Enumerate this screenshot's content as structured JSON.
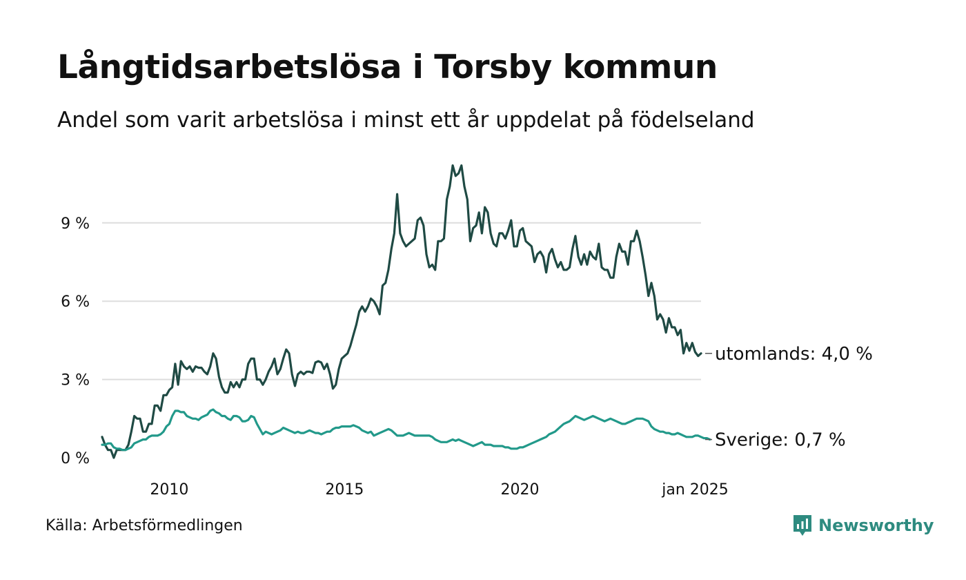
{
  "title": "Långtidsarbetslösa i Torsby kommun",
  "subtitle": "Andel som varit arbetslösa i minst ett år uppdelat på födelseland",
  "source": "Källa: Arbetsförmedlingen",
  "brand": "Newsworthy",
  "colors": {
    "utomlands": "#1f4a44",
    "sverige": "#22998a",
    "grid": "#dddddd",
    "brand": "#2e8b80"
  },
  "chart_data": {
    "type": "line",
    "title": "Långtidsarbetslösa i Torsby kommun",
    "xlabel": "",
    "ylabel": "",
    "x_start": "2008-02",
    "ylim": [
      0,
      11.5
    ],
    "y_ticks": [
      0,
      3,
      6,
      9
    ],
    "y_tick_labels": [
      "0 %",
      "3 %",
      "6 %",
      "9 %"
    ],
    "x_ticks": [
      2010,
      2015,
      2020,
      2025
    ],
    "x_tick_labels": [
      "2010",
      "2015",
      "2020",
      "jan 2025"
    ],
    "series": [
      {
        "name": "utomlands",
        "end_label": "utomlands: 4,0 %",
        "values": [
          0.8,
          0.5,
          0.3,
          0.3,
          0.0,
          0.3,
          0.3,
          0.3,
          0.3,
          0.5,
          1.0,
          1.6,
          1.5,
          1.5,
          1.0,
          1.0,
          1.3,
          1.3,
          2.0,
          2.0,
          1.8,
          2.4,
          2.4,
          2.6,
          2.7,
          3.6,
          2.8,
          3.7,
          3.5,
          3.4,
          3.5,
          3.3,
          3.5,
          3.45,
          3.45,
          3.3,
          3.2,
          3.5,
          4.0,
          3.8,
          3.1,
          2.7,
          2.5,
          2.5,
          2.9,
          2.7,
          2.9,
          2.7,
          3.0,
          3.0,
          3.6,
          3.8,
          3.8,
          3.0,
          3.0,
          2.8,
          3.0,
          3.3,
          3.5,
          3.8,
          3.2,
          3.4,
          3.8,
          4.15,
          4.0,
          3.2,
          2.75,
          3.2,
          3.3,
          3.2,
          3.3,
          3.3,
          3.25,
          3.65,
          3.7,
          3.65,
          3.4,
          3.6,
          3.2,
          2.65,
          2.8,
          3.4,
          3.8,
          3.9,
          4.0,
          4.3,
          4.7,
          5.1,
          5.6,
          5.8,
          5.6,
          5.8,
          6.1,
          6.0,
          5.8,
          5.5,
          6.6,
          6.7,
          7.2,
          8.0,
          8.6,
          10.1,
          8.6,
          8.3,
          8.1,
          8.2,
          8.3,
          8.4,
          9.1,
          9.2,
          8.9,
          7.8,
          7.3,
          7.4,
          7.2,
          8.3,
          8.3,
          8.4,
          9.9,
          10.4,
          11.2,
          10.8,
          10.9,
          11.2,
          10.4,
          9.9,
          8.3,
          8.8,
          8.9,
          9.4,
          8.6,
          9.6,
          9.4,
          8.6,
          8.2,
          8.1,
          8.6,
          8.6,
          8.4,
          8.7,
          9.1,
          8.1,
          8.1,
          8.7,
          8.8,
          8.3,
          8.2,
          8.1,
          7.5,
          7.8,
          7.9,
          7.7,
          7.1,
          7.8,
          8.0,
          7.6,
          7.3,
          7.5,
          7.2,
          7.2,
          7.3,
          8.0,
          8.5,
          7.7,
          7.4,
          7.8,
          7.4,
          7.9,
          7.7,
          7.6,
          8.2,
          7.3,
          7.2,
          7.2,
          6.9,
          6.9,
          7.7,
          8.2,
          7.9,
          7.9,
          7.4,
          8.3,
          8.3,
          8.7,
          8.3,
          7.7,
          7.0,
          6.2,
          6.7,
          6.2,
          5.3,
          5.5,
          5.3,
          4.8,
          5.35,
          5.0,
          5.0,
          4.7,
          4.9,
          4.0,
          4.4,
          4.1,
          4.4,
          4.05,
          3.9,
          4.0
        ]
      },
      {
        "name": "Sverige",
        "end_label": "Sverige: 0,7 %",
        "values": [
          0.5,
          0.5,
          0.55,
          0.55,
          0.4,
          0.35,
          0.35,
          0.3,
          0.3,
          0.35,
          0.4,
          0.55,
          0.6,
          0.65,
          0.7,
          0.7,
          0.8,
          0.85,
          0.85,
          0.85,
          0.9,
          1.0,
          1.2,
          1.3,
          1.6,
          1.8,
          1.8,
          1.75,
          1.75,
          1.6,
          1.55,
          1.5,
          1.5,
          1.45,
          1.55,
          1.6,
          1.65,
          1.8,
          1.85,
          1.75,
          1.7,
          1.6,
          1.6,
          1.5,
          1.45,
          1.6,
          1.6,
          1.55,
          1.4,
          1.4,
          1.45,
          1.6,
          1.55,
          1.3,
          1.1,
          0.9,
          1.0,
          0.95,
          0.9,
          0.95,
          1.0,
          1.05,
          1.15,
          1.1,
          1.05,
          1.0,
          0.95,
          1.0,
          0.95,
          0.95,
          1.0,
          1.05,
          1.0,
          0.95,
          0.95,
          0.9,
          0.95,
          1.0,
          1.0,
          1.1,
          1.15,
          1.15,
          1.2,
          1.2,
          1.2,
          1.2,
          1.25,
          1.2,
          1.15,
          1.05,
          1.0,
          0.95,
          1.0,
          0.85,
          0.9,
          0.95,
          1.0,
          1.05,
          1.1,
          1.05,
          0.95,
          0.85,
          0.85,
          0.85,
          0.9,
          0.95,
          0.9,
          0.85,
          0.85,
          0.85,
          0.85,
          0.85,
          0.85,
          0.8,
          0.7,
          0.65,
          0.6,
          0.6,
          0.6,
          0.65,
          0.7,
          0.65,
          0.7,
          0.65,
          0.6,
          0.55,
          0.5,
          0.45,
          0.5,
          0.55,
          0.6,
          0.5,
          0.5,
          0.5,
          0.45,
          0.45,
          0.45,
          0.45,
          0.4,
          0.4,
          0.35,
          0.35,
          0.35,
          0.4,
          0.4,
          0.45,
          0.5,
          0.55,
          0.6,
          0.65,
          0.7,
          0.75,
          0.8,
          0.9,
          0.95,
          1.0,
          1.1,
          1.2,
          1.3,
          1.35,
          1.4,
          1.5,
          1.6,
          1.55,
          1.5,
          1.45,
          1.5,
          1.55,
          1.6,
          1.55,
          1.5,
          1.45,
          1.4,
          1.45,
          1.5,
          1.45,
          1.4,
          1.35,
          1.3,
          1.3,
          1.35,
          1.4,
          1.45,
          1.5,
          1.5,
          1.5,
          1.45,
          1.4,
          1.2,
          1.1,
          1.05,
          1.0,
          1.0,
          0.95,
          0.95,
          0.9,
          0.9,
          0.95,
          0.9,
          0.85,
          0.8,
          0.8,
          0.8,
          0.85,
          0.85,
          0.8,
          0.75,
          0.75,
          0.7
        ]
      }
    ]
  }
}
